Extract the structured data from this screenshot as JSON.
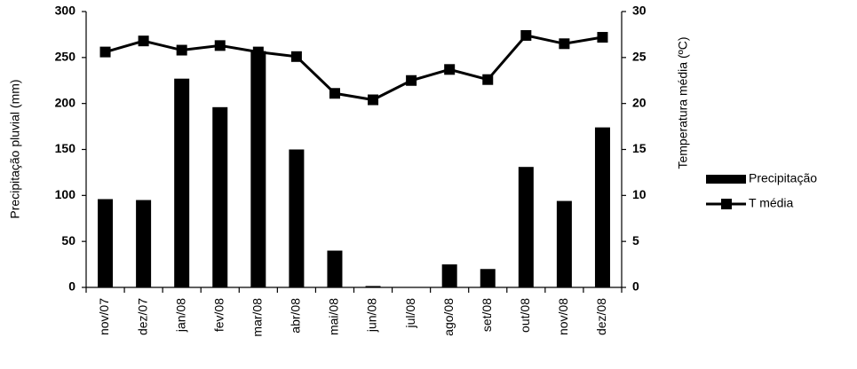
{
  "chart_data": {
    "type": "bar",
    "categories": [
      "nov/07",
      "dez/07",
      "jan/08",
      "fev/08",
      "mar/08",
      "abr/08",
      "mai/08",
      "jun/08",
      "jul/08",
      "ago/08",
      "set/08",
      "out/08",
      "nov/08",
      "dez/08"
    ],
    "series": [
      {
        "name": "Precipitação",
        "type": "bar",
        "color": "#000000",
        "values": [
          96,
          95,
          227,
          196,
          257,
          150,
          40,
          1.5,
          0,
          25,
          20,
          131,
          94,
          174
        ]
      },
      {
        "name": "T média",
        "type": "line",
        "axis": "y2",
        "color": "#000000",
        "values": [
          25.6,
          26.8,
          25.8,
          26.3,
          25.6,
          25.1,
          21.1,
          20.4,
          22.5,
          23.7,
          22.6,
          27.4,
          26.5,
          27.2
        ]
      }
    ],
    "y_label": "Precipitação pluvial  (mm)",
    "y2_label": "Temperatura média (ºC)",
    "ylim": [
      0,
      300
    ],
    "yticks": [
      0,
      50,
      100,
      150,
      200,
      250,
      300
    ],
    "y2lim": [
      0,
      30
    ],
    "y2ticks": [
      0,
      5,
      10,
      15,
      20,
      25,
      30
    ],
    "grid": false,
    "legend": "right"
  }
}
